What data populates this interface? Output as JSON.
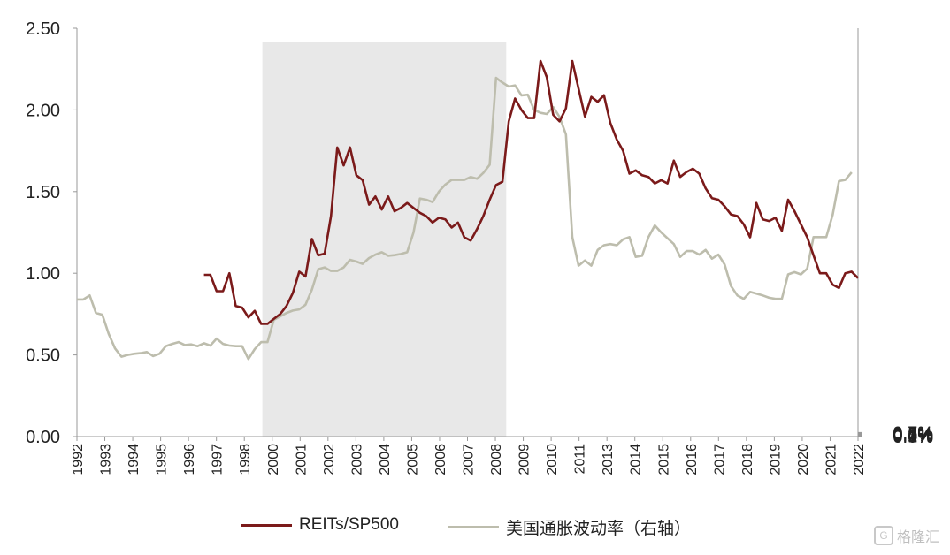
{
  "chart_data": {
    "type": "line",
    "shaded_region": {
      "x_start": 1999.3,
      "x_end": 2008.9,
      "color": "#e8e8e8"
    },
    "x_ticks": [
      "1992",
      "1993",
      "1994",
      "1995",
      "1996",
      "1997",
      "1998",
      "2000",
      "2001",
      "2002",
      "2003",
      "2004",
      "2005",
      "2006",
      "2007",
      "2008",
      "2009",
      "2010",
      "2011",
      "2013",
      "2014",
      "2015",
      "2016",
      "2017",
      "2018",
      "2019",
      "2020",
      "2021",
      "2022"
    ],
    "y_left": {
      "min": 0,
      "max": 2.5,
      "ticks": [
        "0.00",
        "0.50",
        "1.00",
        "1.50",
        "2.00",
        "2.50"
      ]
    },
    "y_right": {
      "min": 0,
      "max": 0.7,
      "ticks": [
        "0.0%",
        "0.1%",
        "0.2%",
        "0.3%",
        "0.4%",
        "0.5%",
        "0.6%",
        "0.7%"
      ]
    },
    "series": [
      {
        "name": "REITs/SP500",
        "axis": "left",
        "color": "#7b1a1a",
        "points": [
          [
            1997.0,
            0.99
          ],
          [
            1997.25,
            0.99
          ],
          [
            1997.5,
            0.89
          ],
          [
            1997.75,
            0.89
          ],
          [
            1998.0,
            1.0
          ],
          [
            1998.25,
            0.8
          ],
          [
            1998.5,
            0.79
          ],
          [
            1998.75,
            0.73
          ],
          [
            1999.0,
            0.77
          ],
          [
            1999.25,
            0.69
          ],
          [
            1999.5,
            0.69
          ],
          [
            1999.75,
            0.72
          ],
          [
            2000.0,
            0.75
          ],
          [
            2000.25,
            0.8
          ],
          [
            2000.5,
            0.88
          ],
          [
            2000.75,
            1.01
          ],
          [
            2001.0,
            0.98
          ],
          [
            2001.25,
            1.21
          ],
          [
            2001.5,
            1.11
          ],
          [
            2001.75,
            1.12
          ],
          [
            2002.0,
            1.35
          ],
          [
            2002.25,
            1.77
          ],
          [
            2002.5,
            1.66
          ],
          [
            2002.75,
            1.77
          ],
          [
            2003.0,
            1.6
          ],
          [
            2003.25,
            1.57
          ],
          [
            2003.5,
            1.42
          ],
          [
            2003.75,
            1.47
          ],
          [
            2004.0,
            1.39
          ],
          [
            2004.25,
            1.47
          ],
          [
            2004.5,
            1.38
          ],
          [
            2004.75,
            1.4
          ],
          [
            2005.0,
            1.43
          ],
          [
            2005.25,
            1.4
          ],
          [
            2005.5,
            1.37
          ],
          [
            2005.75,
            1.35
          ],
          [
            2006.0,
            1.31
          ],
          [
            2006.25,
            1.34
          ],
          [
            2006.5,
            1.33
          ],
          [
            2006.75,
            1.28
          ],
          [
            2007.0,
            1.31
          ],
          [
            2007.25,
            1.22
          ],
          [
            2007.5,
            1.2
          ],
          [
            2007.75,
            1.27
          ],
          [
            2008.0,
            1.35
          ],
          [
            2008.25,
            1.45
          ],
          [
            2008.5,
            1.54
          ],
          [
            2008.75,
            1.56
          ],
          [
            2009.0,
            1.93
          ],
          [
            2009.25,
            2.07
          ],
          [
            2009.5,
            2.0
          ],
          [
            2009.75,
            1.95
          ],
          [
            2010.0,
            1.95
          ],
          [
            2010.25,
            2.3
          ],
          [
            2010.5,
            2.2
          ],
          [
            2010.75,
            1.97
          ],
          [
            2011.0,
            1.93
          ],
          [
            2011.25,
            2.01
          ],
          [
            2011.5,
            2.3
          ],
          [
            2011.75,
            2.13
          ],
          [
            2012.0,
            1.96
          ],
          [
            2012.25,
            2.08
          ],
          [
            2012.5,
            2.05
          ],
          [
            2012.75,
            2.09
          ],
          [
            2013.0,
            1.92
          ],
          [
            2013.25,
            1.82
          ],
          [
            2013.5,
            1.75
          ],
          [
            2013.75,
            1.61
          ],
          [
            2014.0,
            1.63
          ],
          [
            2014.25,
            1.6
          ],
          [
            2014.5,
            1.59
          ],
          [
            2014.75,
            1.55
          ],
          [
            2015.0,
            1.57
          ],
          [
            2015.25,
            1.55
          ],
          [
            2015.5,
            1.69
          ],
          [
            2015.75,
            1.59
          ],
          [
            2016.0,
            1.62
          ],
          [
            2016.25,
            1.64
          ],
          [
            2016.5,
            1.61
          ],
          [
            2016.75,
            1.52
          ],
          [
            2017.0,
            1.46
          ],
          [
            2017.25,
            1.45
          ],
          [
            2017.5,
            1.41
          ],
          [
            2017.75,
            1.36
          ],
          [
            2018.0,
            1.35
          ],
          [
            2018.25,
            1.3
          ],
          [
            2018.5,
            1.22
          ],
          [
            2018.75,
            1.43
          ],
          [
            2019.0,
            1.33
          ],
          [
            2019.25,
            1.32
          ],
          [
            2019.5,
            1.34
          ],
          [
            2019.75,
            1.26
          ],
          [
            2020.0,
            1.45
          ],
          [
            2020.25,
            1.38
          ],
          [
            2020.5,
            1.3
          ],
          [
            2020.75,
            1.22
          ],
          [
            2021.0,
            1.11
          ],
          [
            2021.25,
            1.0
          ],
          [
            2021.5,
            1.0
          ],
          [
            2021.75,
            0.93
          ],
          [
            2022.0,
            0.91
          ],
          [
            2022.25,
            1.0
          ],
          [
            2022.5,
            1.01
          ],
          [
            2022.75,
            0.97
          ]
        ]
      },
      {
        "name": "美国通胀波动率（右轴）",
        "axis": "right",
        "color": "#bdbdad",
        "points": [
          [
            1992.0,
            0.235
          ],
          [
            1992.25,
            0.235
          ],
          [
            1992.5,
            0.242
          ],
          [
            1992.75,
            0.212
          ],
          [
            1993.0,
            0.209
          ],
          [
            1993.25,
            0.176
          ],
          [
            1993.5,
            0.151
          ],
          [
            1993.75,
            0.137
          ],
          [
            1994.0,
            0.14
          ],
          [
            1994.25,
            0.142
          ],
          [
            1994.5,
            0.143
          ],
          [
            1994.75,
            0.145
          ],
          [
            1995.0,
            0.138
          ],
          [
            1995.25,
            0.142
          ],
          [
            1995.5,
            0.155
          ],
          [
            1995.75,
            0.159
          ],
          [
            1996.0,
            0.162
          ],
          [
            1996.25,
            0.157
          ],
          [
            1996.5,
            0.158
          ],
          [
            1996.75,
            0.155
          ],
          [
            1997.0,
            0.16
          ],
          [
            1997.25,
            0.156
          ],
          [
            1997.5,
            0.168
          ],
          [
            1997.75,
            0.159
          ],
          [
            1998.0,
            0.156
          ],
          [
            1998.25,
            0.155
          ],
          [
            1998.5,
            0.155
          ],
          [
            1998.75,
            0.133
          ],
          [
            1999.0,
            0.15
          ],
          [
            1999.25,
            0.162
          ],
          [
            1999.5,
            0.162
          ],
          [
            1999.75,
            0.2
          ],
          [
            2000.0,
            0.206
          ],
          [
            2000.25,
            0.212
          ],
          [
            2000.5,
            0.216
          ],
          [
            2000.75,
            0.218
          ],
          [
            2001.0,
            0.226
          ],
          [
            2001.25,
            0.252
          ],
          [
            2001.5,
            0.287
          ],
          [
            2001.75,
            0.29
          ],
          [
            2002.0,
            0.284
          ],
          [
            2002.25,
            0.284
          ],
          [
            2002.5,
            0.29
          ],
          [
            2002.75,
            0.303
          ],
          [
            2003.0,
            0.3
          ],
          [
            2003.25,
            0.296
          ],
          [
            2003.5,
            0.306
          ],
          [
            2003.75,
            0.312
          ],
          [
            2004.0,
            0.316
          ],
          [
            2004.25,
            0.31
          ],
          [
            2004.5,
            0.311
          ],
          [
            2004.75,
            0.313
          ],
          [
            2005.0,
            0.316
          ],
          [
            2005.25,
            0.35
          ],
          [
            2005.5,
            0.408
          ],
          [
            2005.75,
            0.406
          ],
          [
            2006.0,
            0.402
          ],
          [
            2006.25,
            0.42
          ],
          [
            2006.5,
            0.432
          ],
          [
            2006.75,
            0.44
          ],
          [
            2007.0,
            0.44
          ],
          [
            2007.25,
            0.44
          ],
          [
            2007.5,
            0.445
          ],
          [
            2007.75,
            0.442
          ],
          [
            2008.0,
            0.452
          ],
          [
            2008.25,
            0.466
          ],
          [
            2008.5,
            0.615
          ],
          [
            2008.75,
            0.607
          ],
          [
            2009.0,
            0.6
          ],
          [
            2009.25,
            0.602
          ],
          [
            2009.5,
            0.585
          ],
          [
            2009.75,
            0.586
          ],
          [
            2010.0,
            0.56
          ],
          [
            2010.25,
            0.555
          ],
          [
            2010.5,
            0.553
          ],
          [
            2010.75,
            0.565
          ],
          [
            2011.0,
            0.548
          ],
          [
            2011.25,
            0.518
          ],
          [
            2011.5,
            0.342
          ],
          [
            2011.75,
            0.293
          ],
          [
            2012.0,
            0.302
          ],
          [
            2012.25,
            0.293
          ],
          [
            2012.5,
            0.32
          ],
          [
            2012.75,
            0.328
          ],
          [
            2013.0,
            0.33
          ],
          [
            2013.25,
            0.328
          ],
          [
            2013.5,
            0.338
          ],
          [
            2013.75,
            0.342
          ],
          [
            2014.0,
            0.308
          ],
          [
            2014.25,
            0.31
          ],
          [
            2014.5,
            0.342
          ],
          [
            2014.75,
            0.362
          ],
          [
            2015.0,
            0.35
          ],
          [
            2015.25,
            0.34
          ],
          [
            2015.5,
            0.33
          ],
          [
            2015.75,
            0.308
          ],
          [
            2016.0,
            0.318
          ],
          [
            2016.25,
            0.318
          ],
          [
            2016.5,
            0.312
          ],
          [
            2016.75,
            0.32
          ],
          [
            2017.0,
            0.305
          ],
          [
            2017.25,
            0.312
          ],
          [
            2017.5,
            0.295
          ],
          [
            2017.75,
            0.258
          ],
          [
            2018.0,
            0.242
          ],
          [
            2018.25,
            0.236
          ],
          [
            2018.5,
            0.248
          ],
          [
            2018.75,
            0.245
          ],
          [
            2019.0,
            0.242
          ],
          [
            2019.25,
            0.238
          ],
          [
            2019.5,
            0.236
          ],
          [
            2019.75,
            0.236
          ],
          [
            2020.0,
            0.278
          ],
          [
            2020.25,
            0.282
          ],
          [
            2020.5,
            0.278
          ],
          [
            2020.75,
            0.288
          ],
          [
            2021.0,
            0.342
          ],
          [
            2021.25,
            0.342
          ],
          [
            2021.5,
            0.342
          ],
          [
            2021.75,
            0.38
          ],
          [
            2022.0,
            0.438
          ],
          [
            2022.25,
            0.44
          ],
          [
            2022.5,
            0.453
          ]
        ]
      }
    ]
  },
  "legend": {
    "item1": {
      "label": "REITs/SP500",
      "color": "#7b1a1a"
    },
    "item2": {
      "label": "美国通胀波动率（右轴）",
      "color": "#bdbdad"
    }
  },
  "watermark": {
    "text": "格隆汇",
    "icon": "G"
  }
}
